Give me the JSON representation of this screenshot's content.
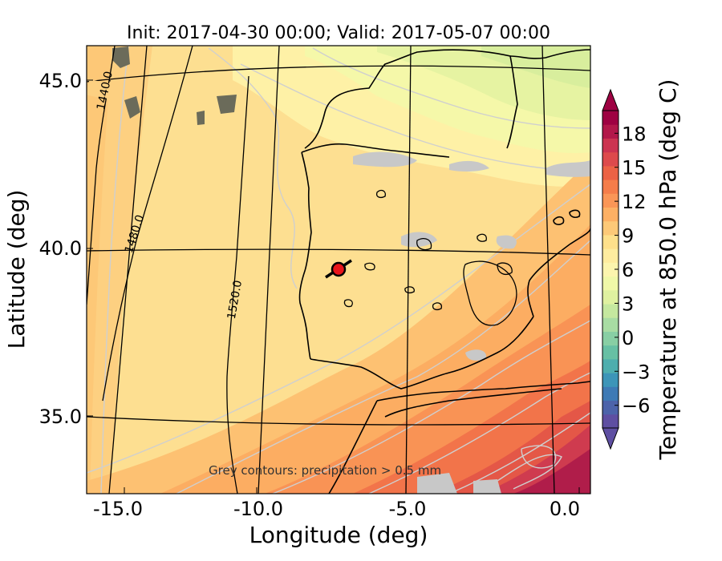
{
  "title": "Init: 2017-04-30 00:00; Valid: 2017-05-07 00:00",
  "xlabel": "Longitude (deg)",
  "ylabel": "Latitude (deg)",
  "x_ticks": [
    "-15.0",
    "-10.0",
    "-5.0",
    "0.0"
  ],
  "y_ticks": [
    "45.0",
    "40.0",
    "35.0"
  ],
  "colorbar": {
    "label": "Temperature at 850.0 hPa (deg C)",
    "ticks": [
      "18",
      "15",
      "12",
      "9",
      "6",
      "3",
      "0",
      "−3",
      "−6"
    ],
    "colors": [
      "#5e4fa2",
      "#4c63aa",
      "#3e7ab5",
      "#3d95b8",
      "#4eaeae",
      "#67c0a4",
      "#88cfa4",
      "#a8dca3",
      "#c5e89f",
      "#dff1a0",
      "#f0f8a8",
      "#fcf5ae",
      "#feec9f",
      "#fee08b",
      "#fdc978",
      "#fdb064",
      "#fa9657",
      "#f57d4a",
      "#ec6245",
      "#dd4a4c",
      "#cc3451",
      "#b2184a",
      "#9e0142"
    ],
    "value_range": [
      -8,
      20
    ]
  },
  "contour_labels": [
    "1440.0",
    "1480.0",
    "1520.0"
  ],
  "note": "Grey contours: precipitation > 0.5 mm",
  "marker": {
    "color": "#e8161c",
    "lon": -7.6,
    "lat": 39.3
  }
}
